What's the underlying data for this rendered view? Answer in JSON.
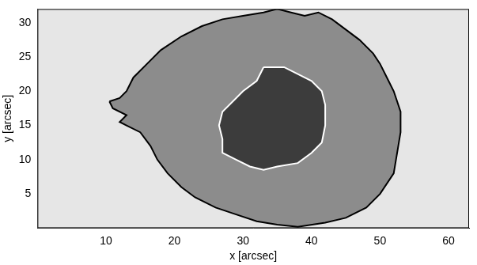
{
  "chart_data": {
    "type": "line",
    "xlabel": "x [arcsec]",
    "ylabel": "y [arcsec]",
    "xlim": [
      0,
      63
    ],
    "ylim": [
      0,
      32
    ],
    "xticks": [
      10,
      20,
      30,
      40,
      50,
      60
    ],
    "yticks": [
      5,
      10,
      15,
      20,
      25,
      30
    ],
    "grid": false,
    "series": [
      {
        "type": "area",
        "color": "#000000",
        "x": [
          10.5,
          12,
          13,
          14,
          16,
          18,
          21,
          24,
          27,
          30,
          33,
          35,
          37,
          39,
          41,
          43,
          45,
          47,
          49,
          50,
          51,
          52,
          53,
          53,
          52.5,
          52,
          50,
          48,
          45,
          42,
          38,
          35,
          32,
          29,
          26,
          23,
          21,
          19,
          17.5,
          16.5,
          15,
          13,
          12,
          13,
          11,
          10.5
        ],
        "values": [
          18.5,
          19,
          20,
          22,
          24,
          26,
          28,
          29.5,
          30.5,
          31,
          31.5,
          32,
          31.5,
          31,
          31.5,
          30.5,
          29,
          27.5,
          25.5,
          24,
          22,
          20,
          17,
          14,
          11,
          8,
          5,
          3,
          1.5,
          0.8,
          0.2,
          0.5,
          1,
          2,
          3,
          4.5,
          6,
          8,
          10,
          12,
          14,
          15,
          15.5,
          16.5,
          17.5,
          18.5
        ]
      },
      {
        "type": "area",
        "color": "#ffffff",
        "x": [
          33,
          36,
          38,
          40,
          41.5,
          42,
          42,
          41.5,
          40,
          38,
          35,
          33,
          31,
          29,
          27,
          27,
          26.5,
          27,
          29,
          30,
          32,
          33
        ],
        "values": [
          23.5,
          23.5,
          22.5,
          21.5,
          20,
          18,
          15,
          12.5,
          11,
          9.5,
          9,
          8.5,
          9,
          10,
          11,
          13,
          15,
          17,
          19,
          20,
          21.5,
          23.5
        ]
      }
    ]
  }
}
